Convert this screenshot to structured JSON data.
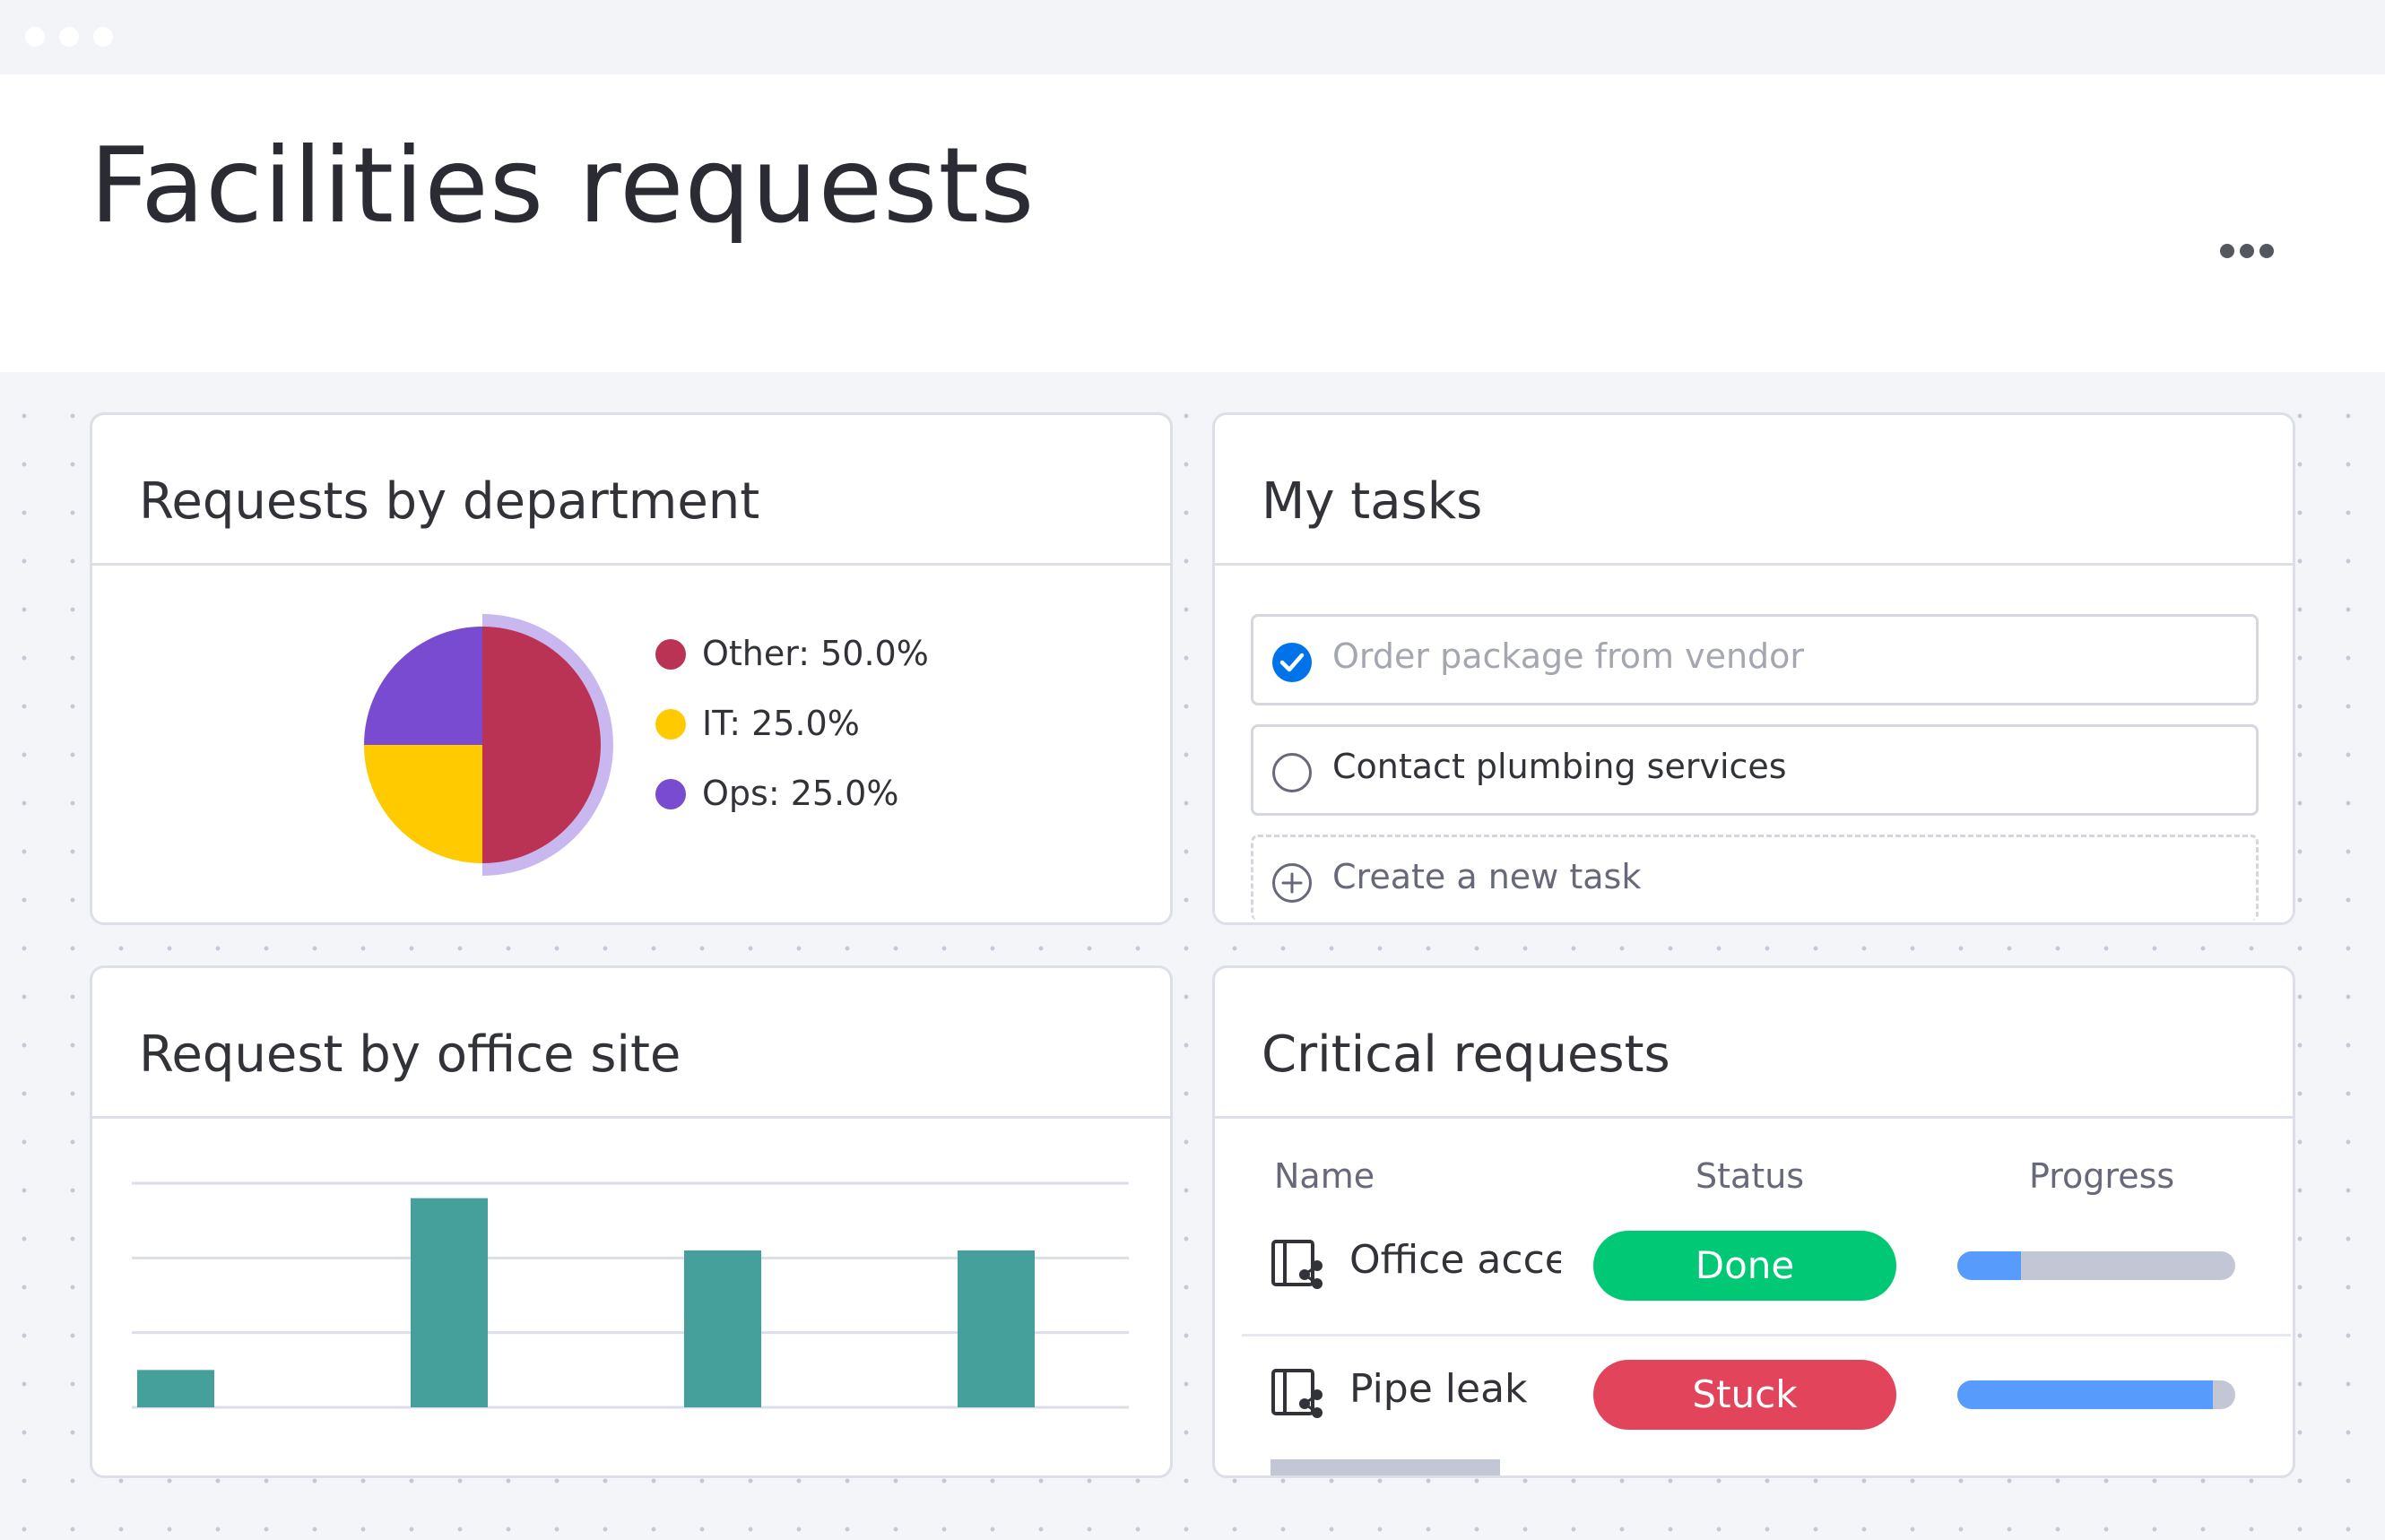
{
  "page": {
    "title": "Facilities requests",
    "more_menu_icon": "more-horizontal-icon"
  },
  "cards": {
    "department": {
      "title": "Requests by department",
      "legend": [
        {
          "label": "Other: 50.0%",
          "color": "#bb3354"
        },
        {
          "label": "IT: 25.0%",
          "color": "#ffcb00"
        },
        {
          "label": "Ops: 25.0%",
          "color": "#784bd1"
        }
      ]
    },
    "tasks": {
      "title": "My tasks",
      "items": [
        {
          "label": "Order package from vendor",
          "done": true,
          "icon": "check-circle-icon"
        },
        {
          "label": "Contact plumbing services",
          "done": false,
          "icon": "empty-circle-icon"
        }
      ],
      "create_label": "Create a new task",
      "create_icon": "plus-circle-icon"
    },
    "office_site": {
      "title": "Request by office site"
    },
    "critical": {
      "title": "Critical requests",
      "columns": [
        "Name",
        "Status",
        "Progress"
      ],
      "rows": [
        {
          "name": "Office access",
          "status": "Done",
          "status_color": "#00c875",
          "progress": 0.23,
          "icon": "board-share-icon"
        },
        {
          "name": "Pipe leak",
          "status": "Stuck",
          "status_color": "#e2445c",
          "progress": 0.92,
          "icon": "board-share-icon"
        }
      ]
    }
  },
  "chart_data": [
    {
      "type": "pie",
      "title": "Requests by department",
      "labels": [
        "Other",
        "IT",
        "Ops"
      ],
      "values": [
        50.0,
        25.0,
        25.0
      ],
      "colors": [
        "#bb3354",
        "#ffcb00",
        "#784bd1"
      ],
      "legend": "right"
    },
    {
      "type": "bar",
      "title": "Request by office site",
      "categories": [
        "",
        "",
        "",
        ""
      ],
      "values": [
        0.5,
        2.8,
        2.1,
        2.1
      ],
      "ylim": [
        0,
        3
      ],
      "grid": true,
      "color": "#45a09b"
    }
  ]
}
